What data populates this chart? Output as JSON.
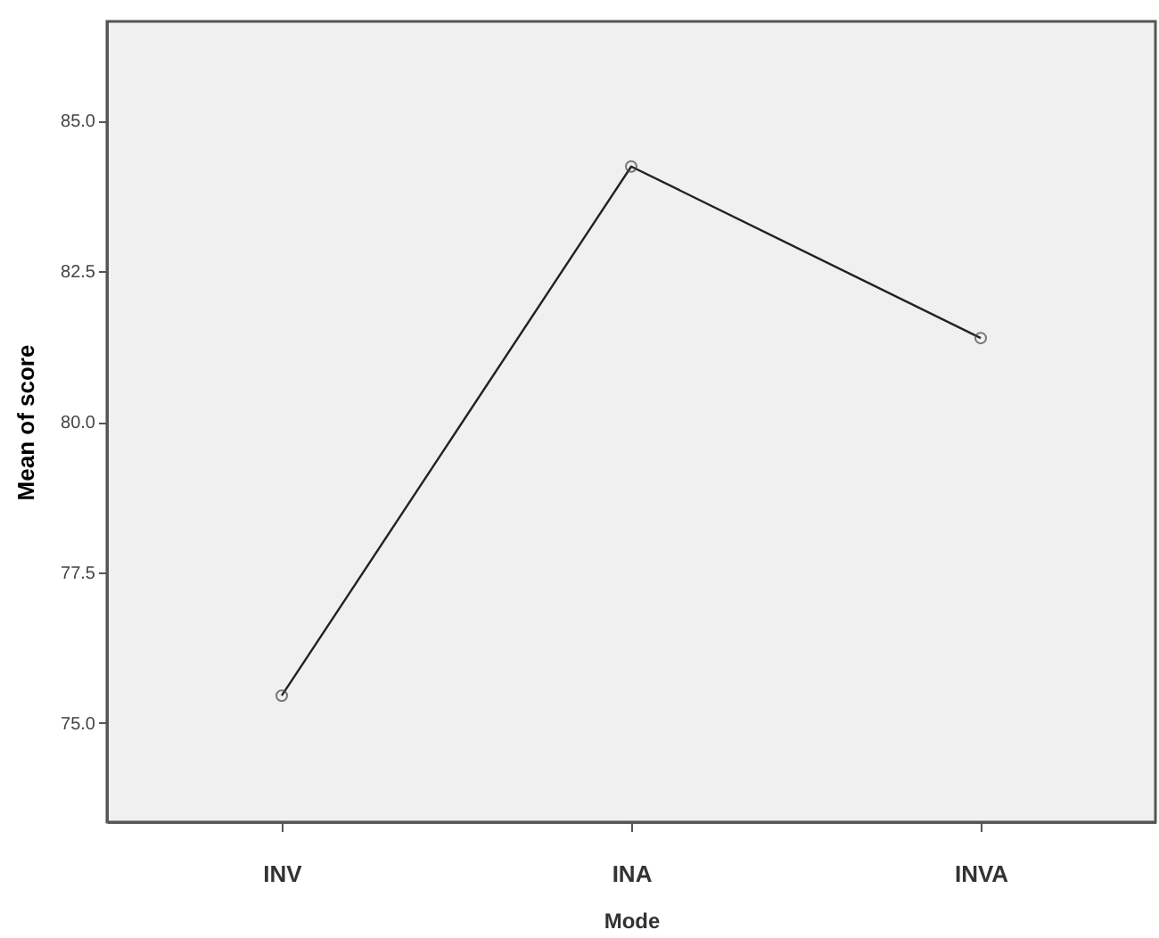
{
  "chart_data": {
    "type": "line",
    "xlabel": "Mode",
    "ylabel": "Mean of score",
    "categories": [
      "INV",
      "INA",
      "INVA"
    ],
    "series": [
      {
        "color": "#222222",
        "values": [
          75.45,
          84.24,
          81.39
        ]
      }
    ],
    "ylim": [
      73.35,
      86.65
    ],
    "yticks": [
      {
        "value": 75,
        "label": "75.0"
      },
      77.5,
      {
        "value": 80,
        "label": "80.0"
      },
      82.5,
      {
        "value": 85,
        "label": "85.0"
      }
    ],
    "marker": "circle",
    "line_style": "solid",
    "grid": false
  }
}
